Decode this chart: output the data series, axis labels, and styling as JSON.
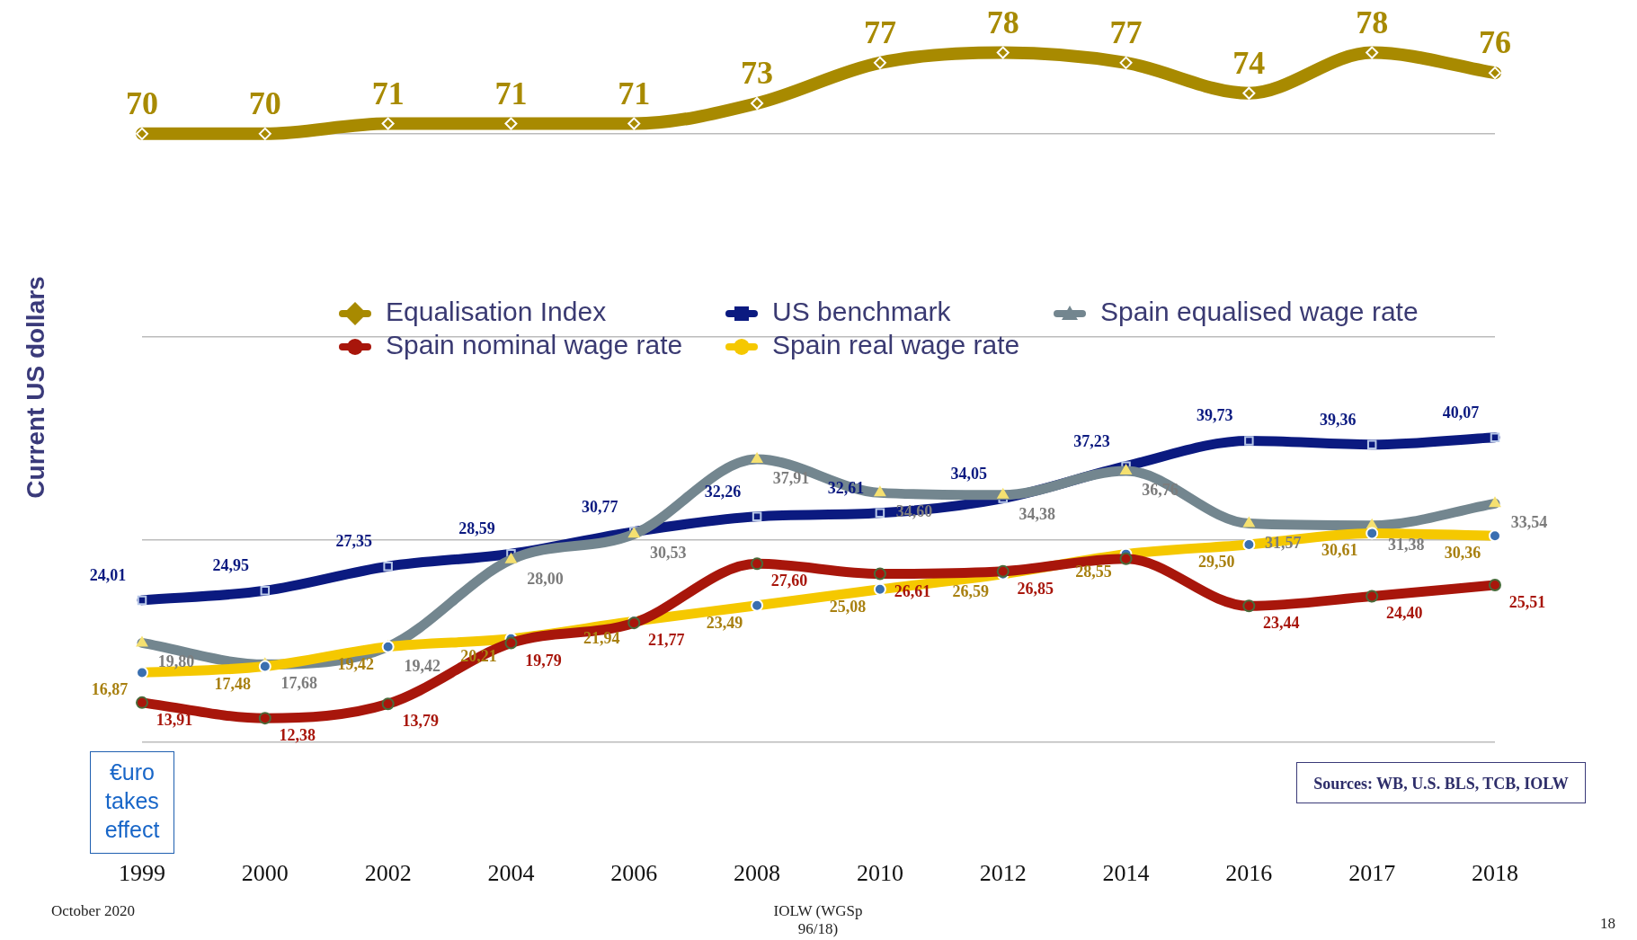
{
  "chart_data": {
    "type": "line",
    "ylabel": "Current US dollars",
    "categories": [
      "1999",
      "2000",
      "2002",
      "2004",
      "2006",
      "2008",
      "2010",
      "2012",
      "2014",
      "2016",
      "2017",
      "2018"
    ],
    "yticks": [
      {
        "value": 10,
        "label": null
      },
      {
        "value": 30,
        "label": null
      },
      {
        "value": 50,
        "label": null
      },
      {
        "value": 70,
        "label": null
      }
    ],
    "grid": "y",
    "tick_labels": "x",
    "legend": "top",
    "line_style": "solid",
    "series": [
      {
        "name": "Equalisation Index",
        "color": "#a88a00",
        "marker": "diamond",
        "values": [
          70,
          70,
          71,
          71,
          71,
          73,
          77,
          78,
          77,
          74,
          78,
          76
        ],
        "value_labels": [
          "70",
          "70",
          "71",
          "71",
          "71",
          "73",
          "77",
          "78",
          "77",
          "74",
          "78",
          "76"
        ]
      },
      {
        "name": "US benchmark",
        "color": "#0b1a80",
        "marker": "square",
        "values": [
          24.01,
          24.95,
          27.35,
          28.59,
          30.77,
          32.26,
          32.61,
          34.05,
          37.23,
          39.73,
          39.36,
          40.07
        ],
        "value_labels": [
          "24,01",
          "24,95",
          "27,35",
          "28,59",
          "30,77",
          "32,26",
          "32,61",
          "34,05",
          "37,23",
          "39,73",
          "39,36",
          "40,07"
        ]
      },
      {
        "name": "Spain equalised wage rate",
        "color": "#73868f",
        "marker": "triangle",
        "values": [
          19.8,
          17.68,
          19.42,
          28.0,
          30.53,
          37.91,
          34.6,
          34.38,
          36.76,
          31.57,
          31.38,
          33.54
        ],
        "value_labels": [
          "19,80",
          "17,68",
          "19,42",
          "28,00",
          "30,53",
          "37,91",
          "34,60",
          "34,38",
          "36,76",
          "31,57",
          "31,38",
          "33,54"
        ]
      },
      {
        "name": "Spain nominal wage rate",
        "color": "#a8160b",
        "marker": "circle",
        "values": [
          13.91,
          12.38,
          13.79,
          19.79,
          21.77,
          27.6,
          26.61,
          26.85,
          28.1,
          23.44,
          24.4,
          25.51
        ],
        "value_labels": [
          "13,91",
          "12,38",
          "13,79",
          "19,79",
          "21,77",
          "27,60",
          "26,61",
          "26,85",
          null,
          "23,44",
          "24,40",
          "25,51"
        ]
      },
      {
        "name": "Spain real wage rate",
        "color": "#f5c800",
        "marker": "circle",
        "values": [
          16.87,
          17.48,
          19.42,
          20.21,
          21.94,
          23.49,
          25.08,
          26.59,
          28.55,
          29.5,
          30.61,
          30.36
        ],
        "value_labels": [
          "16,87",
          "17,48",
          "19,42",
          "20,21",
          "21,94",
          "23,49",
          "25,08",
          "26,59",
          "28,55",
          "29,50",
          "30,61",
          "30,36"
        ]
      }
    ],
    "annotations": [
      "€uro takes effect",
      "Sources: WB, U.S. BLS, TCB, IOLW",
      "October 2020",
      "IOLW (WGSp 96/18)",
      "18"
    ]
  }
}
